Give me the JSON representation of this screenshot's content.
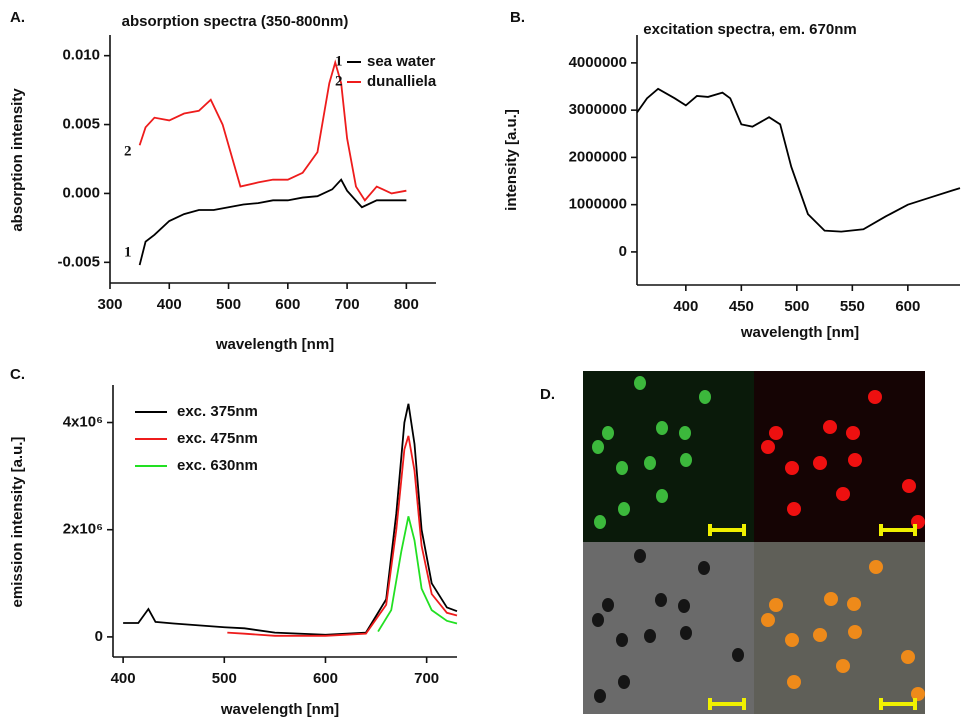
{
  "chart_data": [
    {
      "type": "line",
      "label": "A.",
      "title": "absorption spectra (350-800nm)",
      "xlabel": "wavelength [nm]",
      "ylabel": "absorption intensity",
      "xlim": [
        300,
        850
      ],
      "ylim": [
        -0.0065,
        0.0115
      ],
      "xticks": [
        300,
        400,
        500,
        600,
        700,
        800
      ],
      "yticks": [
        -0.005,
        {
          "value": 0,
          "label": "0.000"
        },
        0.005,
        {
          "value": 0.01,
          "label": "0.010"
        }
      ],
      "annotations": [
        "2",
        "1"
      ],
      "series": [
        {
          "name": "sea water",
          "number": "1",
          "color": "#000000",
          "x": [
            350,
            360,
            375,
            400,
            425,
            450,
            475,
            500,
            525,
            550,
            575,
            600,
            625,
            650,
            675,
            690,
            700,
            725,
            750,
            775,
            800
          ],
          "values": [
            -0.0052,
            -0.0035,
            -0.003,
            -0.002,
            -0.0015,
            -0.0012,
            -0.0012,
            -0.001,
            -0.0008,
            -0.0007,
            -0.0005,
            -0.0005,
            -0.0003,
            -0.0002,
            0.0003,
            0.001,
            0.0002,
            -0.001,
            -0.0005,
            -0.0005,
            -0.0005
          ]
        },
        {
          "name": "dunalliela",
          "number": "2",
          "color": "#ee1c1c",
          "x": [
            350,
            360,
            375,
            400,
            425,
            450,
            470,
            490,
            510,
            520,
            550,
            575,
            600,
            625,
            650,
            670,
            680,
            690,
            700,
            715,
            730,
            750,
            775,
            800
          ],
          "values": [
            0.0035,
            0.0048,
            0.0055,
            0.0053,
            0.0058,
            0.006,
            0.0068,
            0.005,
            0.002,
            0.0005,
            0.0008,
            0.001,
            0.001,
            0.0015,
            0.003,
            0.008,
            0.0095,
            0.008,
            0.004,
            0.0005,
            -0.0005,
            0.0005,
            0,
            0.0002
          ]
        }
      ]
    },
    {
      "type": "line",
      "label": "B.",
      "title": "excitation spectra, em. 670nm",
      "xlabel": "wavelength [nm]",
      "ylabel": "intensity [a.u.]",
      "xlim": [
        356,
        647
      ],
      "ylim": [
        -700000,
        4590000
      ],
      "xticks": [
        400,
        450,
        500,
        550,
        600
      ],
      "yticks": [
        0,
        1000000,
        2000000,
        3000000,
        4000000
      ],
      "series": [
        {
          "color": "#000000",
          "x": [
            356,
            365,
            375,
            390,
            400,
            410,
            420,
            433,
            440,
            450,
            460,
            475,
            485,
            495,
            510,
            525,
            540,
            560,
            580,
            600,
            620,
            640,
            647
          ],
          "values": [
            2950000,
            3250000,
            3450000,
            3250000,
            3100000,
            3300000,
            3280000,
            3370000,
            3250000,
            2700000,
            2650000,
            2850000,
            2700000,
            1800000,
            800000,
            450000,
            430000,
            480000,
            750000,
            1000000,
            1150000,
            1300000,
            1350000
          ]
        }
      ]
    },
    {
      "type": "line",
      "label": "C.",
      "xlabel": "wavelength [nm]",
      "ylabel": "emission intensity [a.u.]",
      "xlim": [
        390,
        730
      ],
      "ylim": [
        -375000,
        4700000
      ],
      "xticks": [
        400,
        500,
        600,
        700
      ],
      "yticks": [
        0,
        {
          "value": 2000000,
          "label": "2x10⁶"
        },
        {
          "value": 4000000,
          "label": "4x10⁶"
        }
      ],
      "series": [
        {
          "name": "exc. 375nm",
          "color": "#000000",
          "x": [
            400,
            415,
            425,
            432,
            450,
            500,
            520,
            550,
            600,
            640,
            660,
            670,
            678,
            682,
            688,
            695,
            705,
            720,
            730
          ],
          "values": [
            260000,
            260000,
            520000,
            280000,
            250000,
            180000,
            160000,
            80000,
            40000,
            80000,
            700000,
            2300000,
            4000000,
            4350000,
            3600000,
            2000000,
            1000000,
            550000,
            480000
          ]
        },
        {
          "name": "exc. 475nm",
          "color": "#ee1c1c",
          "x": [
            503,
            520,
            550,
            600,
            640,
            660,
            670,
            678,
            682,
            688,
            695,
            705,
            720,
            730
          ],
          "values": [
            80000,
            60000,
            20000,
            20000,
            60000,
            600000,
            2000000,
            3500000,
            3750000,
            3100000,
            1700000,
            800000,
            450000,
            400000
          ]
        },
        {
          "name": "exc. 630nm",
          "color": "#22e022",
          "x": [
            652,
            665,
            675,
            682,
            688,
            695,
            705,
            720,
            730
          ],
          "values": [
            100000,
            500000,
            1600000,
            2250000,
            1800000,
            900000,
            500000,
            300000,
            250000
          ]
        }
      ]
    }
  ],
  "panel_d": {
    "label": "D."
  }
}
